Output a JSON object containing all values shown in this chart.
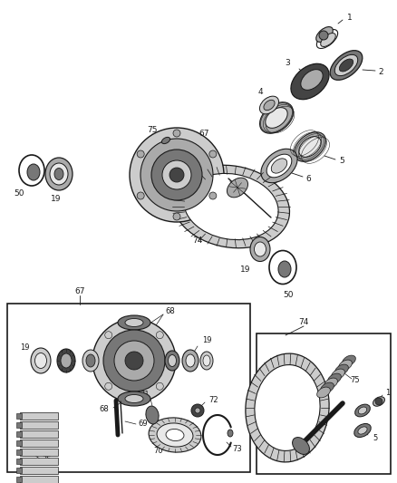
{
  "bg_color": "#ffffff",
  "fig_width": 4.38,
  "fig_height": 5.33,
  "dpi": 100,
  "dark": "#1a1a1a",
  "gray1": "#444444",
  "gray2": "#777777",
  "gray3": "#aaaaaa",
  "gray4": "#cccccc",
  "gray5": "#e8e8e8",
  "white": "#ffffff"
}
